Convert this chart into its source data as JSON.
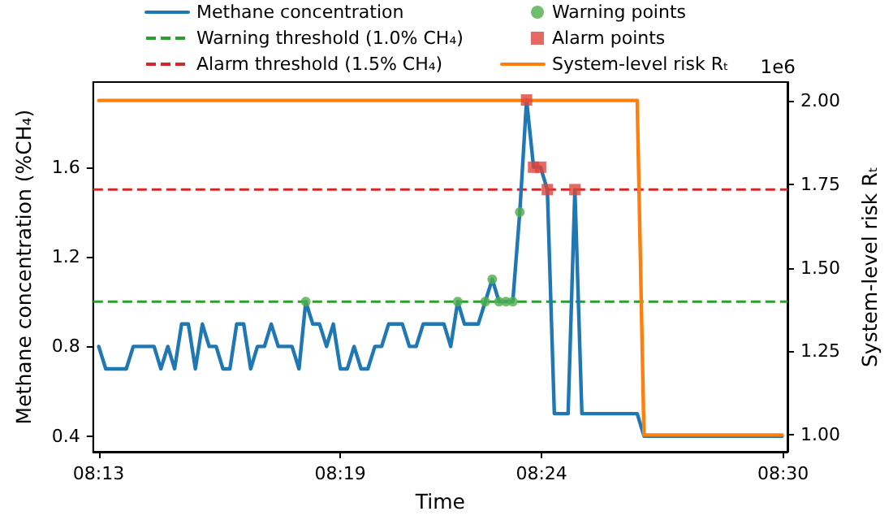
{
  "chart_data": {
    "type": "line",
    "xlabel": "Time",
    "ylabel": "Methane concentration (%CH₄)",
    "y2label": "System-level risk Rₜ",
    "xlim": [
      8.2144,
      8.5018
    ],
    "xticks": [
      {
        "value": 8.21667,
        "label": "08:13"
      },
      {
        "value": 8.31667,
        "label": "08:19"
      },
      {
        "value": 8.4,
        "label": "08:24"
      },
      {
        "value": 8.5,
        "label": "08:30"
      }
    ],
    "ylim": [
      0.33,
      1.98
    ],
    "yticks": [
      0.4,
      0.8,
      1.2,
      1.6
    ],
    "y2lim": [
      0.95,
      2.055
    ],
    "y2ticks": [
      {
        "value": 1,
        "label": "1.00"
      },
      {
        "value": 1.25,
        "label": "1.25"
      },
      {
        "value": 1.5,
        "label": "1.50"
      },
      {
        "value": 1.75,
        "label": "1.75"
      },
      {
        "value": 2,
        "label": "2.00"
      }
    ],
    "series": [
      {
        "name": "Methane concentration",
        "color": "#1f77b4",
        "marker": "none",
        "x": [
          8.2167,
          8.2196,
          8.2281,
          8.231,
          8.2396,
          8.2424,
          8.2453,
          8.2481,
          8.251,
          8.2538,
          8.2567,
          8.2596,
          8.2624,
          8.2653,
          8.2681,
          8.271,
          8.2738,
          8.2767,
          8.2796,
          8.2824,
          8.2853,
          8.2881,
          8.291,
          8.2967,
          8.2996,
          8.3024,
          8.3053,
          8.3081,
          8.311,
          8.3138,
          8.3167,
          8.3196,
          8.3224,
          8.3253,
          8.3281,
          8.331,
          8.3338,
          8.3367,
          8.3424,
          8.3453,
          8.3481,
          8.351,
          8.3596,
          8.3624,
          8.3653,
          8.3681,
          8.3738,
          8.3767,
          8.3796,
          8.3824,
          8.3853,
          8.3881,
          8.391,
          8.3938,
          8.3967,
          8.3996,
          8.4024,
          8.4053,
          8.411,
          8.4138,
          8.4167,
          8.4396,
          8.4424,
          8.4996
        ],
        "values": [
          0.8,
          0.7,
          0.7,
          0.8,
          0.8,
          0.7,
          0.8,
          0.7,
          0.9,
          0.9,
          0.7,
          0.9,
          0.8,
          0.8,
          0.7,
          0.7,
          0.9,
          0.9,
          0.7,
          0.8,
          0.8,
          0.9,
          0.8,
          0.8,
          0.7,
          1.0,
          0.9,
          0.9,
          0.8,
          0.9,
          0.7,
          0.7,
          0.8,
          0.7,
          0.7,
          0.8,
          0.8,
          0.9,
          0.9,
          0.8,
          0.8,
          0.9,
          0.9,
          0.8,
          1.0,
          0.9,
          0.9,
          1.0,
          1.1,
          1.0,
          1.0,
          1.0,
          1.4,
          1.9,
          1.6,
          1.6,
          1.5,
          0.5,
          0.5,
          1.5,
          0.5,
          0.5,
          0.4,
          0.4
        ]
      },
      {
        "name": "Warning points",
        "type": "scatter",
        "color": "#4daf4a",
        "marker": "circle",
        "x": [
          8.3024,
          8.3653,
          8.3767,
          8.3796,
          8.3824,
          8.3853,
          8.3881,
          8.391
        ],
        "values": [
          1.0,
          1.0,
          1.0,
          1.1,
          1.0,
          1.0,
          1.0,
          1.4
        ]
      },
      {
        "name": "Alarm points",
        "type": "scatter",
        "color": "#e0443a",
        "marker": "square",
        "x": [
          8.3938,
          8.3967,
          8.3996,
          8.4024,
          8.4138
        ],
        "values": [
          1.9,
          1.6,
          1.6,
          1.5,
          1.5
        ]
      },
      {
        "name": "System-level risk Rₜ",
        "type": "line",
        "axis": "y2",
        "color": "#ff7f0e",
        "marker": "none",
        "x": [
          8.2167,
          8.4396,
          8.4424,
          8.4996
        ],
        "values": [
          2.0,
          2.0,
          1.0,
          1.0
        ]
      }
    ],
    "ref_lines": [
      {
        "axis": "y",
        "value": 1.0,
        "label": "Warning threshold (1.0% CH₄)",
        "color": "#2ca02c",
        "line_style": "dashed"
      },
      {
        "axis": "y",
        "value": 1.5,
        "label": "Alarm threshold (1.5% CH₄)",
        "color": "#d62728",
        "line_style": "dashed"
      }
    ],
    "annotations": [
      "1e6"
    ],
    "legend": "top",
    "grid": false
  }
}
